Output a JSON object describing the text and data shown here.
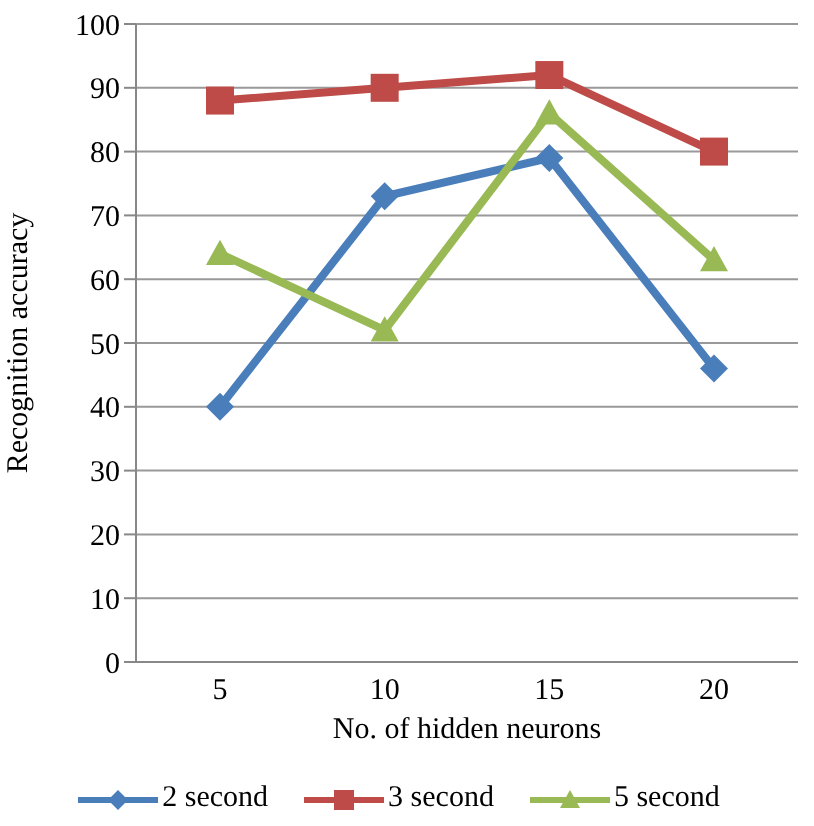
{
  "chart_data": {
    "type": "line",
    "xlabel": "No. of hidden neurons",
    "ylabel": "Recognition accuracy",
    "categories": [
      "5",
      "10",
      "15",
      "20"
    ],
    "series": [
      {
        "name": "2 second",
        "color": "#4a7ebb",
        "marker": "diamond",
        "values": [
          40,
          73,
          79,
          46
        ]
      },
      {
        "name": "3 second",
        "color": "#be4b48",
        "marker": "square",
        "values": [
          88,
          90,
          92,
          80
        ]
      },
      {
        "name": "5 second",
        "color": "#98b954",
        "marker": "triangle",
        "values": [
          64,
          52,
          86,
          63
        ]
      }
    ],
    "ylim": [
      0,
      100
    ],
    "yticks": [
      0,
      10,
      20,
      30,
      40,
      50,
      60,
      70,
      80,
      90,
      100
    ],
    "grid": "y",
    "legend": "bottom"
  }
}
